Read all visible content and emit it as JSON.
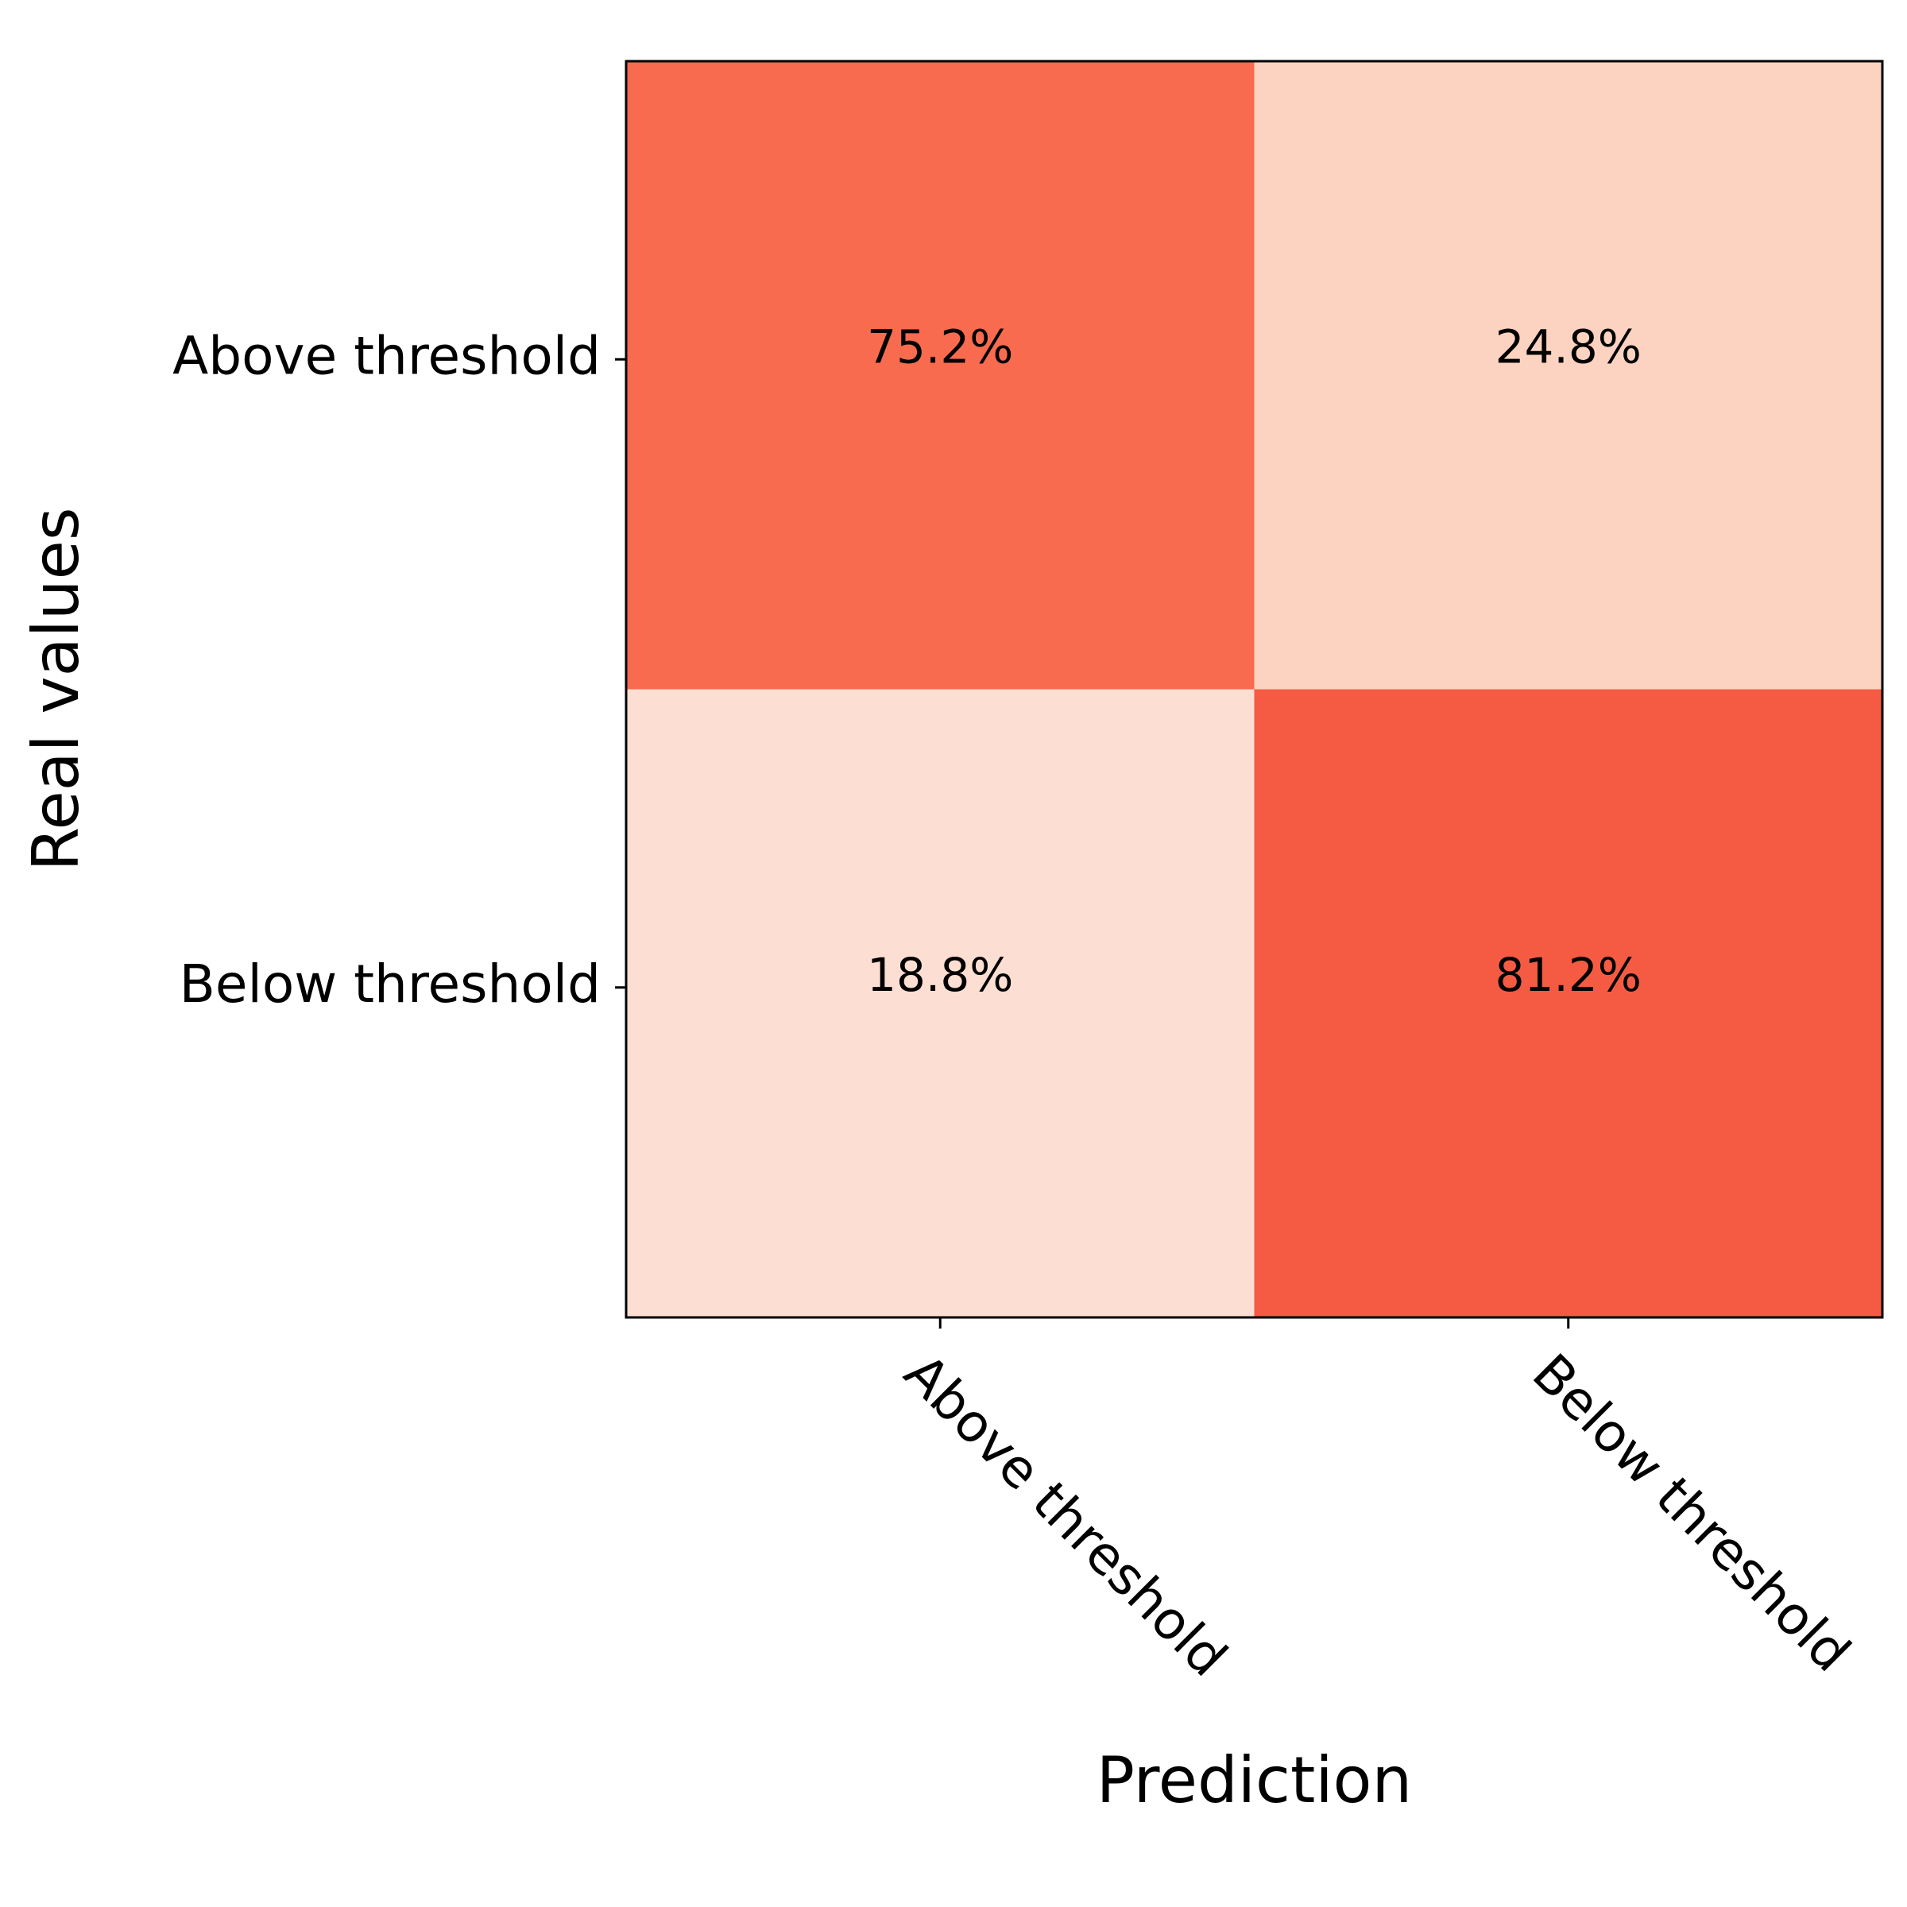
{
  "chart_data": {
    "type": "heatmap",
    "title": "",
    "xlabel": "Prediction",
    "ylabel": "Real values",
    "x_categories": [
      "Above threshold",
      "Below threshold"
    ],
    "y_categories": [
      "Above threshold",
      "Below threshold"
    ],
    "values": [
      [
        75.2,
        24.8
      ],
      [
        18.8,
        81.2
      ]
    ],
    "cell_labels": [
      [
        "75.2%",
        "24.8%"
      ],
      [
        "18.8%",
        "81.2%"
      ]
    ],
    "colormap": "Reds",
    "colors": [
      [
        "#f96b4e",
        "#fcd3c1"
      ],
      [
        "#fcdfd2",
        "#f55b43"
      ]
    ],
    "grid": false,
    "colorbar": false
  }
}
